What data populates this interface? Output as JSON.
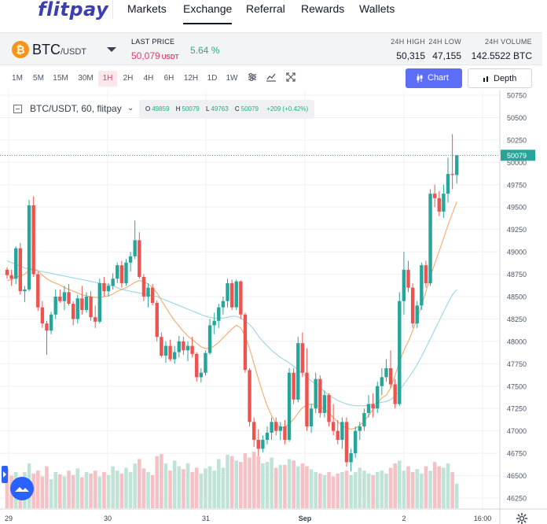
{
  "nav": {
    "logo": "flitpay",
    "items": [
      {
        "label": "Markets"
      },
      {
        "label": "Exchange",
        "active": true
      },
      {
        "label": "Referral"
      },
      {
        "label": "Rewards"
      },
      {
        "label": "Wallets"
      }
    ]
  },
  "ticker": {
    "coin_symbol": "₿",
    "base": "BTC",
    "quote": "/USDT",
    "last_price_label": "LAST PRICE",
    "last_price": "50,079",
    "last_price_unit": "USDT",
    "change": "5.64 %",
    "stats": [
      {
        "label": "24H HIGH",
        "value": "50,315"
      },
      {
        "label": "24H LOW",
        "value": "47,155"
      },
      {
        "label": "24H VOLUME",
        "value": "142.5522 BTC"
      }
    ]
  },
  "toolbar": {
    "intervals": [
      "1M",
      "5M",
      "15M",
      "30M",
      "1H",
      "2H",
      "4H",
      "6H",
      "12H",
      "1D",
      "1W"
    ],
    "active_interval": "1H",
    "chart_button": "Chart",
    "depth_button": "Depth",
    "icons": [
      "indicators-icon",
      "chart-style-icon",
      "fullscreen-icon"
    ]
  },
  "legend": {
    "title": "BTC/USDT, 60, flitpay",
    "chevron": "⌄",
    "open_key": "O",
    "open": "49859",
    "high_key": "H",
    "high": "50079",
    "low_key": "L",
    "low": "49763",
    "close_key": "C",
    "close": "50079",
    "change": "+209 (+0.42%)"
  },
  "chart_data": {
    "type": "candlestick",
    "price_axis": {
      "ticks": [
        "50750",
        "50500",
        "50250",
        "50000",
        "49750",
        "49500",
        "49250",
        "49000",
        "48750",
        "48500",
        "48250",
        "48000",
        "47750",
        "47500",
        "47250",
        "47000",
        "46750",
        "46500",
        "46250"
      ],
      "ylim": [
        46200,
        50800
      ],
      "current_price_label": "50079"
    },
    "time_axis": {
      "ticks": [
        "29",
        "30",
        "31",
        "Sep",
        "2",
        "16:00"
      ]
    },
    "colors": {
      "up": "#26a69a",
      "down": "#ef5350",
      "up_vol": "#bfe3d7",
      "down_vol": "#f6c1c4",
      "ma_fast": "#f5a25d",
      "ma_slow": "#8fd3e8",
      "price_line": "#26a69a"
    },
    "candles": [
      {
        "o": 48800,
        "h": 48830,
        "l": 48700,
        "c": 48740
      },
      {
        "o": 48740,
        "h": 48800,
        "l": 48620,
        "c": 48700
      },
      {
        "o": 48700,
        "h": 49060,
        "l": 48640,
        "c": 49040
      },
      {
        "o": 49040,
        "h": 49100,
        "l": 48520,
        "c": 48560
      },
      {
        "o": 48560,
        "h": 48620,
        "l": 48440,
        "c": 48580
      },
      {
        "o": 48580,
        "h": 49580,
        "l": 48560,
        "c": 49520
      },
      {
        "o": 49520,
        "h": 49620,
        "l": 48720,
        "c": 48750
      },
      {
        "o": 48750,
        "h": 48780,
        "l": 48340,
        "c": 48380
      },
      {
        "o": 48380,
        "h": 48450,
        "l": 48150,
        "c": 48200
      },
      {
        "o": 48200,
        "h": 48230,
        "l": 47850,
        "c": 48120
      },
      {
        "o": 48120,
        "h": 48330,
        "l": 48080,
        "c": 48300
      },
      {
        "o": 48300,
        "h": 48580,
        "l": 48250,
        "c": 48500
      },
      {
        "o": 48500,
        "h": 48580,
        "l": 48430,
        "c": 48450
      },
      {
        "o": 48450,
        "h": 48620,
        "l": 48350,
        "c": 48550
      },
      {
        "o": 48550,
        "h": 48640,
        "l": 48400,
        "c": 48420
      },
      {
        "o": 48420,
        "h": 48450,
        "l": 48180,
        "c": 48250
      },
      {
        "o": 48250,
        "h": 48520,
        "l": 48200,
        "c": 48480
      },
      {
        "o": 48480,
        "h": 48620,
        "l": 48300,
        "c": 48350
      },
      {
        "o": 48350,
        "h": 48550,
        "l": 48320,
        "c": 48500
      },
      {
        "o": 48500,
        "h": 48560,
        "l": 48230,
        "c": 48270
      },
      {
        "o": 48270,
        "h": 48400,
        "l": 48150,
        "c": 48220
      },
      {
        "o": 48220,
        "h": 48700,
        "l": 48200,
        "c": 48650
      },
      {
        "o": 48650,
        "h": 48720,
        "l": 48500,
        "c": 48560
      },
      {
        "o": 48560,
        "h": 48650,
        "l": 48500,
        "c": 48620
      },
      {
        "o": 48620,
        "h": 48760,
        "l": 48580,
        "c": 48700
      },
      {
        "o": 48700,
        "h": 48880,
        "l": 48650,
        "c": 48850
      },
      {
        "o": 48850,
        "h": 48900,
        "l": 48600,
        "c": 48650
      },
      {
        "o": 48650,
        "h": 48920,
        "l": 48620,
        "c": 48880
      },
      {
        "o": 48880,
        "h": 49000,
        "l": 48780,
        "c": 48950
      },
      {
        "o": 48950,
        "h": 49350,
        "l": 48920,
        "c": 49130
      },
      {
        "o": 49130,
        "h": 49220,
        "l": 48700,
        "c": 48720
      },
      {
        "o": 48720,
        "h": 48750,
        "l": 48450,
        "c": 48500
      },
      {
        "o": 48500,
        "h": 48650,
        "l": 48380,
        "c": 48600
      },
      {
        "o": 48600,
        "h": 48640,
        "l": 48400,
        "c": 48430
      },
      {
        "o": 48430,
        "h": 48460,
        "l": 48000,
        "c": 48050
      },
      {
        "o": 48050,
        "h": 48100,
        "l": 47820,
        "c": 47840
      },
      {
        "o": 47840,
        "h": 48000,
        "l": 47760,
        "c": 47950
      },
      {
        "o": 47950,
        "h": 48020,
        "l": 47780,
        "c": 47800
      },
      {
        "o": 47800,
        "h": 47950,
        "l": 47750,
        "c": 47880
      },
      {
        "o": 47880,
        "h": 48060,
        "l": 47820,
        "c": 48000
      },
      {
        "o": 48000,
        "h": 48050,
        "l": 47850,
        "c": 47900
      },
      {
        "o": 47900,
        "h": 48000,
        "l": 47780,
        "c": 47950
      },
      {
        "o": 47950,
        "h": 48050,
        "l": 47820,
        "c": 47860
      },
      {
        "o": 47860,
        "h": 47880,
        "l": 47550,
        "c": 47600
      },
      {
        "o": 47600,
        "h": 47700,
        "l": 47540,
        "c": 47650
      },
      {
        "o": 47650,
        "h": 47900,
        "l": 47620,
        "c": 47870
      },
      {
        "o": 47870,
        "h": 48250,
        "l": 47850,
        "c": 48180
      },
      {
        "o": 48180,
        "h": 48320,
        "l": 48080,
        "c": 48230
      },
      {
        "o": 48230,
        "h": 48420,
        "l": 48150,
        "c": 48380
      },
      {
        "o": 48380,
        "h": 48500,
        "l": 48300,
        "c": 48450
      },
      {
        "o": 48450,
        "h": 48700,
        "l": 48380,
        "c": 48650
      },
      {
        "o": 48650,
        "h": 48690,
        "l": 48350,
        "c": 48380
      },
      {
        "o": 48380,
        "h": 48690,
        "l": 48350,
        "c": 48670
      },
      {
        "o": 48670,
        "h": 48680,
        "l": 48250,
        "c": 48300
      },
      {
        "o": 48300,
        "h": 48320,
        "l": 47650,
        "c": 47680
      },
      {
        "o": 47680,
        "h": 47700,
        "l": 47050,
        "c": 47100
      },
      {
        "o": 47100,
        "h": 47150,
        "l": 46820,
        "c": 46900
      },
      {
        "o": 46900,
        "h": 47020,
        "l": 46720,
        "c": 46800
      },
      {
        "o": 46800,
        "h": 46950,
        "l": 46760,
        "c": 46900
      },
      {
        "o": 46900,
        "h": 47050,
        "l": 46850,
        "c": 46980
      },
      {
        "o": 46980,
        "h": 47150,
        "l": 46900,
        "c": 47100
      },
      {
        "o": 47100,
        "h": 47150,
        "l": 46950,
        "c": 47000
      },
      {
        "o": 47000,
        "h": 47100,
        "l": 46900,
        "c": 47050
      },
      {
        "o": 47050,
        "h": 47120,
        "l": 46850,
        "c": 46900
      },
      {
        "o": 46900,
        "h": 47700,
        "l": 46880,
        "c": 47650
      },
      {
        "o": 47650,
        "h": 47700,
        "l": 47300,
        "c": 47350
      },
      {
        "o": 47350,
        "h": 48050,
        "l": 47320,
        "c": 47980
      },
      {
        "o": 47980,
        "h": 48100,
        "l": 47600,
        "c": 47650
      },
      {
        "o": 47650,
        "h": 47920,
        "l": 47000,
        "c": 47050
      },
      {
        "o": 47050,
        "h": 47300,
        "l": 46980,
        "c": 47250
      },
      {
        "o": 47250,
        "h": 47650,
        "l": 47200,
        "c": 47580
      },
      {
        "o": 47580,
        "h": 47620,
        "l": 47150,
        "c": 47200
      },
      {
        "o": 47200,
        "h": 47450,
        "l": 47150,
        "c": 47400
      },
      {
        "o": 47400,
        "h": 47420,
        "l": 47050,
        "c": 47100
      },
      {
        "o": 47100,
        "h": 47300,
        "l": 46950,
        "c": 47000
      },
      {
        "o": 47000,
        "h": 47120,
        "l": 46850,
        "c": 46900
      },
      {
        "o": 46900,
        "h": 47150,
        "l": 46800,
        "c": 47100
      },
      {
        "o": 47100,
        "h": 47150,
        "l": 46600,
        "c": 46650
      },
      {
        "o": 46650,
        "h": 46800,
        "l": 46550,
        "c": 46750
      },
      {
        "o": 46750,
        "h": 47050,
        "l": 46700,
        "c": 47000
      },
      {
        "o": 47000,
        "h": 47100,
        "l": 46900,
        "c": 47050
      },
      {
        "o": 47050,
        "h": 47250,
        "l": 47000,
        "c": 47200
      },
      {
        "o": 47200,
        "h": 47400,
        "l": 47150,
        "c": 47300
      },
      {
        "o": 47300,
        "h": 47420,
        "l": 47150,
        "c": 47250
      },
      {
        "o": 47250,
        "h": 47550,
        "l": 47200,
        "c": 47500
      },
      {
        "o": 47500,
        "h": 47700,
        "l": 47400,
        "c": 47600
      },
      {
        "o": 47600,
        "h": 47800,
        "l": 47550,
        "c": 47700
      },
      {
        "o": 47700,
        "h": 47900,
        "l": 47480,
        "c": 47520
      },
      {
        "o": 47520,
        "h": 47580,
        "l": 47250,
        "c": 47300
      },
      {
        "o": 47300,
        "h": 48550,
        "l": 47280,
        "c": 48450
      },
      {
        "o": 48450,
        "h": 49000,
        "l": 48300,
        "c": 48800
      },
      {
        "o": 48800,
        "h": 48900,
        "l": 48550,
        "c": 48600
      },
      {
        "o": 48600,
        "h": 48650,
        "l": 48150,
        "c": 48200
      },
      {
        "o": 48200,
        "h": 48450,
        "l": 48150,
        "c": 48400
      },
      {
        "o": 48400,
        "h": 48880,
        "l": 48350,
        "c": 48850
      },
      {
        "o": 48850,
        "h": 48900,
        "l": 48600,
        "c": 48650
      },
      {
        "o": 48650,
        "h": 49700,
        "l": 48620,
        "c": 49650
      },
      {
        "o": 49650,
        "h": 49750,
        "l": 49500,
        "c": 49600
      },
      {
        "o": 49600,
        "h": 49680,
        "l": 49400,
        "c": 49450
      },
      {
        "o": 49450,
        "h": 49750,
        "l": 49380,
        "c": 49650
      },
      {
        "o": 49650,
        "h": 50050,
        "l": 49550,
        "c": 49870
      },
      {
        "o": 49870,
        "h": 50315,
        "l": 49700,
        "c": 49859
      },
      {
        "o": 49859,
        "h": 50079,
        "l": 49763,
        "c": 50079
      }
    ],
    "ma_fast": [
      48680,
      48690,
      48720,
      48730,
      48750,
      48800,
      48810,
      48790,
      48740,
      48700,
      48670,
      48650,
      48630,
      48600,
      48580,
      48560,
      48540,
      48520,
      48510,
      48500,
      48490,
      48490,
      48500,
      48510,
      48530,
      48560,
      48580,
      48600,
      48630,
      48660,
      48680,
      48670,
      48640,
      48600,
      48540,
      48460,
      48380,
      48300,
      48230,
      48170,
      48110,
      48060,
      48020,
      47980,
      47940,
      47920,
      47920,
      47950,
      47990,
      48040,
      48090,
      48140,
      48180,
      48150,
      48060,
      47920,
      47750,
      47580,
      47420,
      47280,
      47170,
      47080,
      47040,
      47040,
      47080,
      47130,
      47200,
      47260,
      47290,
      47300,
      47290,
      47270,
      47240,
      47200,
      47150,
      47100,
      47060,
      47030,
      47020,
      47030,
      47060,
      47110,
      47170,
      47240,
      47310,
      47370,
      47400,
      47480,
      47620,
      47770,
      47900,
      48000,
      48120,
      48250,
      48400,
      48560,
      48720,
      48870,
      49010,
      49150,
      49300,
      49430,
      49560
    ],
    "ma_slow": [
      48900,
      48880,
      48860,
      48840,
      48820,
      48810,
      48800,
      48790,
      48780,
      48770,
      48760,
      48750,
      48740,
      48730,
      48720,
      48710,
      48700,
      48690,
      48680,
      48670,
      48660,
      48650,
      48640,
      48630,
      48620,
      48600,
      48580,
      48570,
      48560,
      48550,
      48540,
      48530,
      48520,
      48510,
      48500,
      48480,
      48460,
      48440,
      48420,
      48400,
      48380,
      48360,
      48340,
      48320,
      48300,
      48280,
      48270,
      48260,
      48260,
      48260,
      48270,
      48280,
      48280,
      48260,
      48230,
      48190,
      48130,
      48060,
      48000,
      47950,
      47900,
      47860,
      47820,
      47790,
      47760,
      47720,
      47680,
      47640,
      47600,
      47560,
      47520,
      47480,
      47440,
      47400,
      47370,
      47340,
      47320,
      47300,
      47290,
      47280,
      47280,
      47280,
      47290,
      47300,
      47310,
      47320,
      47330,
      47350,
      47390,
      47450,
      47520,
      47590,
      47660,
      47740,
      47830,
      47930,
      48030,
      48130,
      48230,
      48330,
      48430,
      48520,
      48580
    ],
    "volumes": [
      0.55,
      0.45,
      0.5,
      0.42,
      0.5,
      0.62,
      0.48,
      0.52,
      0.44,
      0.58,
      0.4,
      0.5,
      0.47,
      0.44,
      0.52,
      0.46,
      0.55,
      0.43,
      0.5,
      0.48,
      0.52,
      0.44,
      0.5,
      0.46,
      0.58,
      0.52,
      0.48,
      0.56,
      0.5,
      0.62,
      0.68,
      0.55,
      0.5,
      0.46,
      0.72,
      0.75,
      0.62,
      0.52,
      0.66,
      0.58,
      0.54,
      0.62,
      0.5,
      0.56,
      0.48,
      0.55,
      0.58,
      0.52,
      0.68,
      0.56,
      0.74,
      0.72,
      0.66,
      0.64,
      0.76,
      0.7,
      0.78,
      0.72,
      0.62,
      0.64,
      0.7,
      0.56,
      0.6,
      0.6,
      0.68,
      0.66,
      0.58,
      0.62,
      0.58,
      0.54,
      0.5,
      0.48,
      0.46,
      0.5,
      0.44,
      0.48,
      0.5,
      0.52,
      0.46,
      0.5,
      0.56,
      0.52,
      0.48,
      0.46,
      0.5,
      0.52,
      0.48,
      0.56,
      0.62,
      0.66,
      0.52,
      0.58,
      0.5,
      0.54,
      0.48,
      0.58,
      0.52,
      0.64,
      0.58,
      0.56,
      0.62,
      0.5,
      0.34
    ]
  }
}
